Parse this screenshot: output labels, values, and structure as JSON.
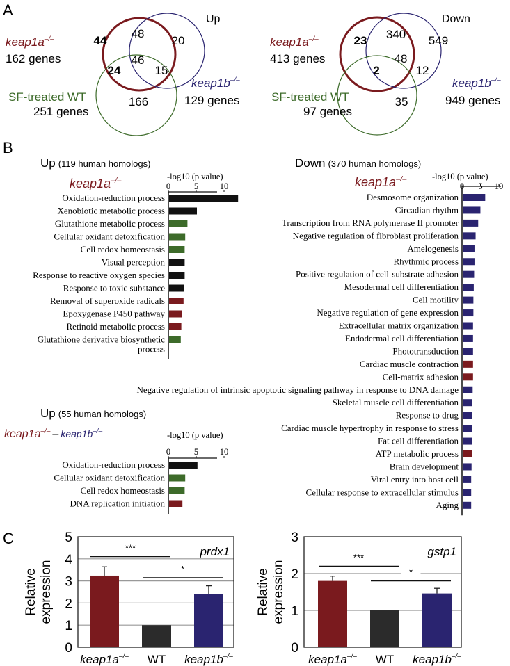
{
  "colors": {
    "keap1a": "#7a1a1e",
    "keap1b": "#2a2470",
    "sf": "#3d6b2a",
    "black": "#111111",
    "wt_bar": "#2b2b2b",
    "grid": "#999999"
  },
  "panels": {
    "A": "A",
    "B": "B",
    "C": "C"
  },
  "venn": [
    {
      "title": "Up",
      "keap1a_label": "keap1a",
      "keap1a_sup": "–/–",
      "keap1a_count": "162 genes",
      "keap1b_label": "keap1b",
      "keap1b_sup": "–/–",
      "keap1b_count": "129 genes",
      "sf_label": "SF-treated WT",
      "sf_count": "251 genes",
      "regions": {
        "a_only": "44",
        "ab": "48",
        "b_only": "20",
        "abc": "46",
        "ac": "24",
        "bc": "15",
        "c_only": "166"
      }
    },
    {
      "title": "Down",
      "keap1a_label": "keap1a",
      "keap1a_sup": "–/–",
      "keap1a_count": "413 genes",
      "keap1b_label": "keap1b",
      "keap1b_sup": "–/–",
      "keap1b_count": "949 genes",
      "sf_label": "SF-treated WT",
      "sf_count": "97 genes",
      "regions": {
        "a_only": "23",
        "ab": "340",
        "b_only": "549",
        "abc": "48",
        "ac": "2",
        "bc": "12",
        "c_only": "35"
      }
    }
  ],
  "chart_data": [
    {
      "type": "bar",
      "orientation": "horizontal",
      "title": "Up",
      "subtitle": "(119 human homologs)",
      "genotype": "keap1a",
      "genotype_sup": "–/–",
      "xlabel": "-log10 (p value)",
      "xlim": [
        0,
        13
      ],
      "xticks": [
        "0",
        "5",
        "10"
      ],
      "categories": [
        "Oxidation-reduction process",
        "Xenobiotic metabolic process",
        "Glutathione metabolic process",
        "Cellular oxidant detoxification",
        "Cell redox homeostasis",
        "Visual perception",
        "Response to reactive oxygen species",
        "Response to toxic substance",
        "Removal of superoxide radicals",
        "Epoxygenase P450 pathway",
        "Retinoid metabolic process",
        [
          "Glutathione derivative biosynthetic",
          "process"
        ]
      ],
      "values": [
        12.4,
        5.0,
        3.3,
        2.9,
        2.8,
        2.8,
        2.8,
        2.7,
        2.6,
        2.3,
        2.2,
        2.1
      ],
      "bar_colors": [
        "black",
        "black",
        "green",
        "green",
        "green",
        "black",
        "black",
        "black",
        "red",
        "red",
        "red",
        "green"
      ]
    },
    {
      "type": "bar",
      "orientation": "horizontal",
      "title": "Down",
      "subtitle": "(370 human homologs)",
      "genotype": "keap1a",
      "genotype_sup": "–/–",
      "xlabel": "-log10 (p value)",
      "xlim": [
        0,
        11
      ],
      "xticks": [
        "0",
        "5",
        "10"
      ],
      "categories": [
        "Desmosome organization",
        "Circadian rhythm",
        "Transcription from RNA polymerase II promoter",
        "Negative regulation of fibroblast proliferation",
        "Amelogenesis",
        "Rhythmic process",
        "Positive regulation of cell-substrate adhesion",
        "Mesodermal cell differentiation",
        "Cell motility",
        "Negative regulation of gene expression",
        "Extracellular matrix organization",
        "Endodermal cell differentiation",
        "Phototransduction",
        "Cardiac muscle contraction",
        "Cell-matrix adhesion",
        "Negative regulation of intrinsic apoptotic signaling pathway in response to DNA damage",
        "Skeletal muscle cell differentiation",
        "Response to drug",
        "Cardiac muscle hypertrophy in response to stress",
        "Fat cell differentiation",
        "ATP metabolic process",
        "Brain development",
        "Viral entry into host cell",
        "Cellular response to extracellular stimulus",
        "Aging"
      ],
      "values": [
        6.1,
        4.8,
        4.2,
        3.5,
        3.2,
        3.2,
        3.1,
        3.0,
        2.9,
        2.9,
        2.8,
        2.8,
        2.8,
        2.8,
        2.8,
        2.7,
        2.6,
        2.5,
        2.5,
        2.5,
        2.5,
        2.4,
        2.3,
        2.3,
        2.3
      ],
      "bar_colors": [
        "blue",
        "blue",
        "blue",
        "blue",
        "blue",
        "blue",
        "blue",
        "blue",
        "blue",
        "blue",
        "blue",
        "blue",
        "blue",
        "red",
        "red",
        "blue",
        "blue",
        "blue",
        "blue",
        "blue",
        "red",
        "blue",
        "blue",
        "blue",
        "blue"
      ]
    },
    {
      "type": "bar",
      "orientation": "horizontal",
      "title": "Up",
      "subtitle": "(55 human homologs)",
      "genotype": "keap1a",
      "genotype_sup": "–/–",
      "genotype_sep": "–",
      "genotype2": "keap1b",
      "genotype2_sup": "–/–",
      "xlabel": "-log10 (p value)",
      "xlim": [
        0,
        13
      ],
      "xticks": [
        "0",
        "5",
        "10"
      ],
      "categories": [
        "Oxidation-reduction process",
        "Cellular oxidant detoxification",
        "Cell redox homeostasis",
        "DNA replication initiation"
      ],
      "values": [
        5.1,
        2.9,
        2.8,
        2.4
      ],
      "bar_colors": [
        "black",
        "green",
        "green",
        "red"
      ]
    },
    {
      "type": "bar",
      "title": "prdx1",
      "ylabel": [
        "Relative",
        "expression"
      ],
      "ylim": [
        0,
        5
      ],
      "yticks": [
        "0",
        "1",
        "2",
        "3",
        "4",
        "5"
      ],
      "categories": [
        "keap1a",
        "WT",
        "keap1b"
      ],
      "category_sups": [
        "–/–",
        "",
        "–/–"
      ],
      "values": [
        3.24,
        1.0,
        2.4
      ],
      "errors": [
        0.4,
        0.0,
        0.38
      ],
      "bar_colors": [
        "red",
        "dark",
        "blue"
      ],
      "significance": [
        {
          "from": 0,
          "to": 1,
          "label": "***",
          "y": 4.1
        },
        {
          "from": 1,
          "to": 2,
          "label": "*",
          "y": 3.15
        }
      ]
    },
    {
      "type": "bar",
      "title": "gstp1",
      "ylabel": [
        "Relative",
        "expression"
      ],
      "ylim": [
        0,
        3
      ],
      "yticks": [
        "0",
        "1",
        "2",
        "3"
      ],
      "categories": [
        "keap1a",
        "WT",
        "keap1b"
      ],
      "category_sups": [
        "–/–",
        "",
        "–/–"
      ],
      "values": [
        1.8,
        1.0,
        1.46
      ],
      "errors": [
        0.13,
        0.0,
        0.14
      ],
      "bar_colors": [
        "red",
        "dark",
        "blue"
      ],
      "significance": [
        {
          "from": 0,
          "to": 1,
          "label": "***",
          "y": 2.2
        },
        {
          "from": 1,
          "to": 2,
          "label": "*",
          "y": 1.8
        }
      ]
    }
  ]
}
